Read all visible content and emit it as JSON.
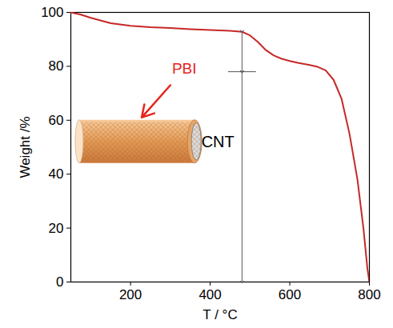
{
  "chart_data": {
    "type": "line",
    "x_label": "T / °C",
    "y_label": "Weight /%",
    "x": [
      50,
      75,
      100,
      150,
      200,
      250,
      300,
      350,
      400,
      450,
      480,
      500,
      520,
      540,
      560,
      580,
      600,
      620,
      650,
      670,
      690,
      710,
      730,
      750,
      770,
      785,
      795,
      800
    ],
    "values": [
      100,
      99.2,
      98,
      96,
      95,
      94.5,
      94.2,
      93.8,
      93.5,
      93.2,
      92.8,
      91.5,
      89,
      86,
      84,
      82.8,
      82,
      81.3,
      80.5,
      79.8,
      78.5,
      75,
      68,
      55,
      38,
      20,
      5,
      0
    ],
    "color": "#c62828",
    "xlim": [
      50,
      800
    ],
    "xticks": [
      200,
      400,
      600,
      800
    ],
    "ylim": [
      0,
      100
    ],
    "yticks": [
      0,
      20,
      40,
      60,
      80,
      100
    ],
    "annotations": [
      {
        "text": "PBI",
        "color": "#e8241c"
      },
      {
        "text": "CNT",
        "color": "#000000"
      }
    ],
    "levels": {
      "x": 480,
      "y": [
        93,
        78,
        0
      ]
    }
  }
}
